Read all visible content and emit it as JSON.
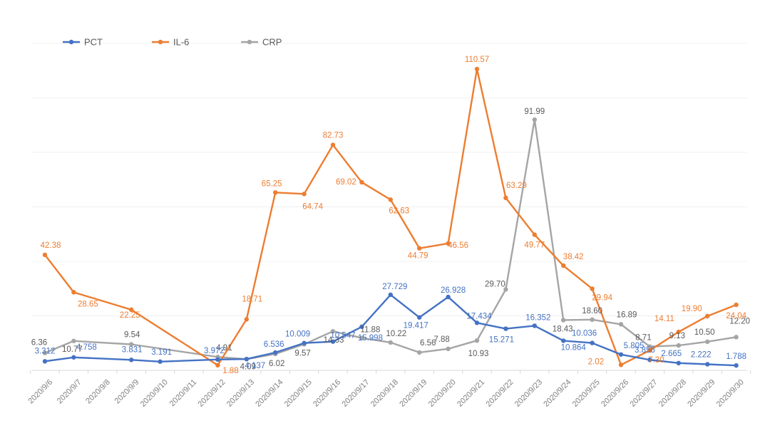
{
  "chart_data": {
    "type": "line",
    "title": "",
    "xlabel": "",
    "ylabel": "",
    "ylim": [
      0,
      140
    ],
    "grid": true,
    "legend_position": "top-left",
    "categories": [
      "2020/9/6",
      "2020/9/7",
      "2020/9/8",
      "2020/9/9",
      "2020/9/10",
      "2020/9/11",
      "2020/9/12",
      "2020/9/13",
      "2020/9/14",
      "2020/9/15",
      "2020/9/16",
      "2020/9/17",
      "2020/9/18",
      "2020/9/19",
      "2020/9/20",
      "2020/9/21",
      "2020/9/22",
      "2020/9/23",
      "2020/9/24",
      "2020/9/25",
      "2020/9/26",
      "2020/9/27",
      "2020/9/28",
      "2020/9/29",
      "2020/9/30"
    ],
    "series": [
      {
        "name": "PCT",
        "color": "#4472C4",
        "x": [
          "2020/9/6",
          "2020/9/7",
          "2020/9/9",
          "2020/9/10",
          "2020/9/12",
          "2020/9/13",
          "2020/9/14",
          "2020/9/15",
          "2020/9/16",
          "2020/9/17",
          "2020/9/18",
          "2020/9/19",
          "2020/9/20",
          "2020/9/21",
          "2020/9/22",
          "2020/9/23",
          "2020/9/24",
          "2020/9/25",
          "2020/9/26",
          "2020/9/27",
          "2020/9/28",
          "2020/9/29",
          "2020/9/30"
        ],
        "values": [
          3.312,
          4.758,
          3.831,
          3.191,
          3.972,
          4.137,
          6.536,
          10.009,
          10.547,
          15.998,
          27.729,
          19.417,
          26.928,
          17.434,
          15.271,
          16.352,
          10.864,
          10.036,
          5.805,
          3.856,
          2.665,
          2.222,
          1.788
        ],
        "labels": [
          "3.312",
          "4.758",
          "3.831",
          "3.191",
          "3.972",
          "4.137",
          "6.536",
          "10.009",
          "10.547",
          "15.998",
          "27.729",
          "19.417",
          "26.928",
          "17.434",
          "15.271",
          "16.352",
          "10.864",
          "10.036",
          "5.805",
          "3.856",
          "2.665",
          "2.222",
          "1.788"
        ]
      },
      {
        "name": "IL-6",
        "color": "#ED7D31",
        "x": [
          "2020/9/6",
          "2020/9/7",
          "2020/9/9",
          "2020/9/12",
          "2020/9/13",
          "2020/9/14",
          "2020/9/15",
          "2020/9/16",
          "2020/9/17",
          "2020/9/18",
          "2020/9/19",
          "2020/9/20",
          "2020/9/21",
          "2020/9/22",
          "2020/9/23",
          "2020/9/24",
          "2020/9/25",
          "2020/9/26",
          "2020/9/27",
          "2020/9/28",
          "2020/9/29",
          "2020/9/30"
        ],
        "values": [
          42.38,
          28.65,
          22.25,
          1.88,
          18.71,
          65.25,
          64.74,
          82.73,
          69.02,
          62.63,
          44.79,
          46.56,
          110.57,
          63.29,
          49.77,
          38.42,
          29.94,
          2.02,
          7.3,
          14.11,
          19.9,
          24.04
        ],
        "labels": [
          "42.38",
          "28.65",
          "22.25",
          "1.88",
          "18.71",
          "65.25",
          "64.74",
          "82.73",
          "69.02",
          "62.63",
          "44.79",
          "46.56",
          "110.57",
          "63.29",
          "49.77",
          "38.42",
          "29.94",
          "2.02",
          "7.30",
          "14.11",
          "19.90",
          "24.04"
        ]
      },
      {
        "name": "CRP",
        "color": "#A5A5A5",
        "x": [
          "2020/9/6",
          "2020/9/7",
          "2020/9/9",
          "2020/9/12",
          "2020/9/13",
          "2020/9/14",
          "2020/9/15",
          "2020/9/16",
          "2020/9/17",
          "2020/9/18",
          "2020/9/19",
          "2020/9/20",
          "2020/9/21",
          "2020/9/22",
          "2020/9/23",
          "2020/9/24",
          "2020/9/25",
          "2020/9/26",
          "2020/9/27",
          "2020/9/28",
          "2020/9/29",
          "2020/9/30"
        ],
        "values": [
          6.36,
          10.77,
          9.54,
          4.91,
          4.09,
          6.02,
          9.57,
          14.33,
          11.88,
          10.22,
          6.56,
          7.88,
          10.93,
          29.7,
          91.99,
          18.43,
          18.6,
          16.89,
          8.71,
          9.13,
          10.5,
          12.2
        ],
        "labels": [
          "6.36",
          "10.77",
          "9.54",
          "4.91",
          "4.09",
          "6.02",
          "9.57",
          "14.33",
          "11.88",
          "10.22",
          "6.56",
          "7.88",
          "10.93",
          "29.70",
          "91.99",
          "18.43",
          "18.60",
          "16.89",
          "8.71",
          "9.13",
          "10.50",
          "12.20"
        ]
      }
    ]
  }
}
